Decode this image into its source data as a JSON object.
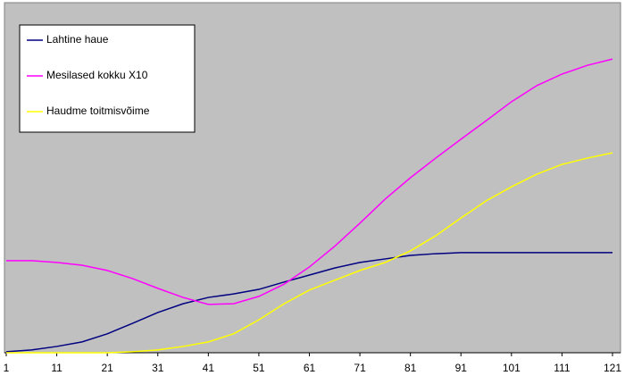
{
  "chart_data": {
    "type": "line",
    "x": [
      1,
      6,
      11,
      16,
      21,
      26,
      31,
      36,
      41,
      46,
      51,
      56,
      61,
      66,
      71,
      76,
      81,
      86,
      91,
      96,
      101,
      106,
      111,
      116,
      121
    ],
    "xlim": [
      1,
      121
    ],
    "xticks": [
      1,
      11,
      21,
      31,
      41,
      51,
      61,
      71,
      81,
      91,
      101,
      111,
      121
    ],
    "ylim": [
      0,
      100
    ],
    "legend": "top-left",
    "background": "#c0c0c0",
    "series": [
      {
        "name": "Lahtine haue",
        "color": "#000080",
        "values": [
          0.3,
          0.8,
          1.8,
          3.1,
          5.4,
          8.4,
          11.5,
          14.0,
          15.8,
          16.8,
          18.1,
          20.2,
          22.2,
          24.2,
          25.8,
          26.8,
          27.8,
          28.3,
          28.6,
          28.6,
          28.6,
          28.6,
          28.6,
          28.6,
          28.6
        ]
      },
      {
        "name": "Mesilased kokku X10",
        "color": "#ff00ff",
        "values": [
          26.3,
          26.3,
          25.8,
          25.0,
          23.5,
          21.2,
          18.4,
          15.8,
          13.8,
          14.0,
          16.1,
          19.6,
          24.5,
          30.4,
          37.0,
          43.9,
          50.0,
          55.6,
          61.0,
          66.3,
          71.7,
          76.3,
          79.6,
          82.1,
          83.9
        ]
      },
      {
        "name": "Haudme toitmisvõime",
        "color": "#ffff00",
        "values": [
          0,
          0,
          0,
          0,
          0,
          0.3,
          0.8,
          1.8,
          3.1,
          5.4,
          9.4,
          14.0,
          17.9,
          20.7,
          23.5,
          25.8,
          29.1,
          33.4,
          38.5,
          43.4,
          47.4,
          51.0,
          53.8,
          55.6,
          57.1
        ]
      }
    ]
  }
}
